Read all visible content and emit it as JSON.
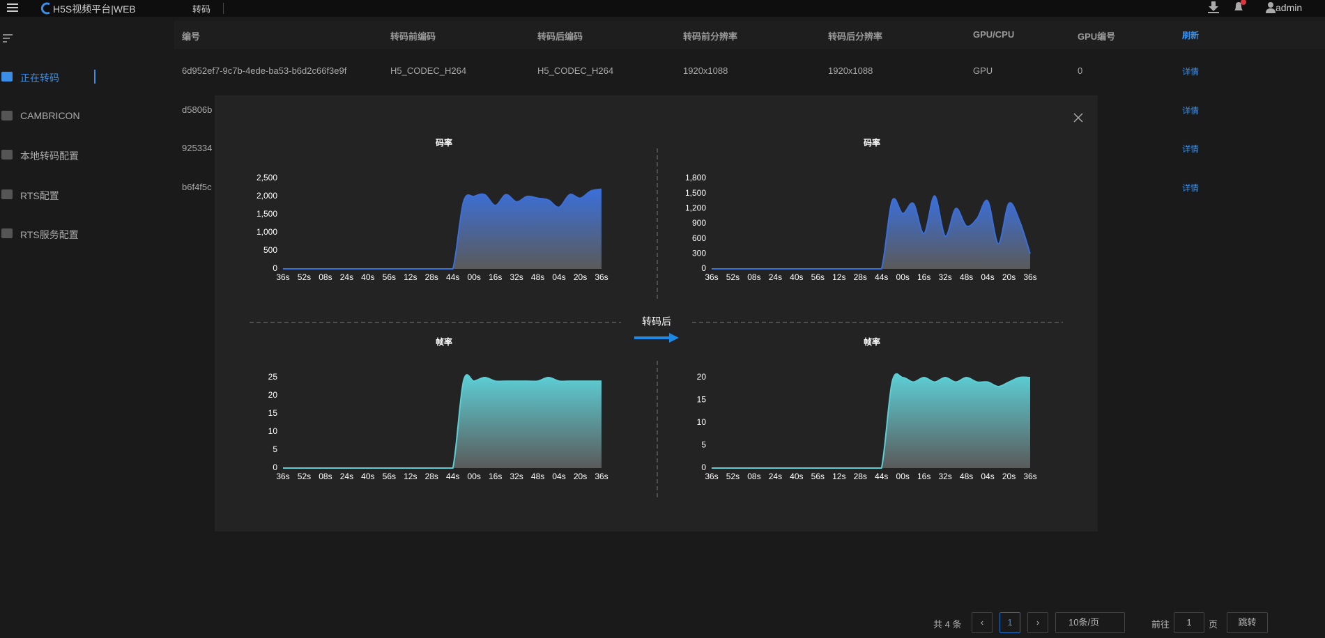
{
  "header": {
    "logo": "H5S视频平台|WEB",
    "nav": "转码",
    "user": "admin"
  },
  "sidebar": [
    "正在转码",
    "CAMBRICON",
    "本地转码配置",
    "RTS配置",
    "RTS服务配置"
  ],
  "table": {
    "columns": [
      "编号",
      "转码前编码",
      "转码后编码",
      "转码前分辨率",
      "转码后分辨率",
      "GPU/CPU",
      "GPU编号",
      "刷新"
    ],
    "rows": [
      [
        "6d952ef7-9c7b-4ede-ba53-b6d2c66f3e9f",
        "H5_CODEC_H264",
        "H5_CODEC_H264",
        "1920x1088",
        "1920x1088",
        "GPU",
        "0",
        "详情"
      ],
      [
        "d5806b",
        "详情"
      ],
      [
        "925334",
        "详情"
      ],
      [
        "b6f4f5c",
        "详情"
      ]
    ]
  },
  "modal": {
    "center_label": "转码后"
  },
  "chart_data": [
    {
      "type": "area",
      "title": "码率",
      "categories": [
        "36s",
        null,
        "52s",
        null,
        "08s",
        null,
        "24s",
        null,
        "40s",
        null,
        "56s",
        null,
        "12s",
        null,
        "28s",
        null,
        "44s",
        null,
        "00s",
        null,
        "16s",
        null,
        "32s",
        null,
        "48s",
        null,
        "04s",
        null,
        "20s",
        null,
        "36s"
      ],
      "series": [
        {
          "color": "#3b6fd9",
          "values": [
            0,
            0,
            0,
            0,
            0,
            0,
            0,
            0,
            0,
            0,
            0,
            0,
            0,
            0,
            0,
            0,
            0,
            1850,
            2000,
            2050,
            1750,
            2050,
            1850,
            2000,
            1950,
            1900,
            1700,
            2050,
            1950,
            2150,
            2200
          ]
        }
      ],
      "ylim": [
        0,
        2500
      ],
      "yticks": [
        0,
        500,
        {
          "value": 1000,
          "label": "1,000"
        },
        {
          "value": 1500,
          "label": "1,500"
        },
        {
          "value": 2000,
          "label": "2,000"
        },
        {
          "value": 2500,
          "label": "2,500"
        }
      ]
    },
    {
      "type": "area",
      "title": "码率",
      "categories": [
        "36s",
        null,
        "52s",
        null,
        "08s",
        null,
        "24s",
        null,
        "40s",
        null,
        "56s",
        null,
        "12s",
        null,
        "28s",
        null,
        "44s",
        null,
        "00s",
        null,
        "16s",
        null,
        "32s",
        null,
        "48s",
        null,
        "04s",
        null,
        "20s",
        null,
        "36s"
      ],
      "series": [
        {
          "color": "#3b6fd9",
          "values": [
            0,
            0,
            0,
            0,
            0,
            0,
            0,
            0,
            0,
            0,
            0,
            0,
            0,
            0,
            0,
            0,
            0,
            1350,
            1100,
            1300,
            700,
            1450,
            650,
            1200,
            850,
            1000,
            1350,
            500,
            1300,
            950,
            300
          ]
        }
      ],
      "ylim": [
        0,
        1800
      ],
      "yticks": [
        0,
        300,
        600,
        900,
        {
          "value": 1200,
          "label": "1,200"
        },
        {
          "value": 1500,
          "label": "1,500"
        },
        {
          "value": 1800,
          "label": "1,800"
        }
      ]
    },
    {
      "type": "area",
      "title": "帧率",
      "categories": [
        "36s",
        null,
        "52s",
        null,
        "08s",
        null,
        "24s",
        null,
        "40s",
        null,
        "56s",
        null,
        "12s",
        null,
        "28s",
        null,
        "44s",
        null,
        "00s",
        null,
        "16s",
        null,
        "32s",
        null,
        "48s",
        null,
        "04s",
        null,
        "20s",
        null,
        "36s"
      ],
      "series": [
        {
          "color": "#5ccfd6",
          "values": [
            0,
            0,
            0,
            0,
            0,
            0,
            0,
            0,
            0,
            0,
            0,
            0,
            0,
            0,
            0,
            0,
            0,
            24,
            24,
            25,
            24,
            24,
            24,
            24,
            24,
            25,
            24,
            24,
            24,
            24,
            24
          ]
        }
      ],
      "ylim": [
        0,
        25
      ],
      "yticks": [
        0,
        5,
        10,
        15,
        20,
        25
      ]
    },
    {
      "type": "area",
      "title": "帧率",
      "categories": [
        "36s",
        null,
        "52s",
        null,
        "08s",
        null,
        "24s",
        null,
        "40s",
        null,
        "56s",
        null,
        "12s",
        null,
        "28s",
        null,
        "44s",
        null,
        "00s",
        null,
        "16s",
        null,
        "32s",
        null,
        "48s",
        null,
        "04s",
        null,
        "20s",
        null,
        "36s"
      ],
      "series": [
        {
          "color": "#5ccfd6",
          "values": [
            0,
            0,
            0,
            0,
            0,
            0,
            0,
            0,
            0,
            0,
            0,
            0,
            0,
            0,
            0,
            0,
            0,
            19,
            20,
            19,
            20,
            19,
            20,
            19,
            20,
            19,
            19,
            18,
            19,
            20,
            20
          ]
        }
      ],
      "ylim": [
        0,
        20
      ],
      "yticks": [
        0,
        5,
        10,
        15,
        20
      ]
    }
  ],
  "pagination": {
    "total": "共 4 条",
    "page": "1",
    "page_size": "10条/页",
    "goto": "前往",
    "goto_value": "1",
    "page_unit": "页",
    "jump": "跳转"
  }
}
